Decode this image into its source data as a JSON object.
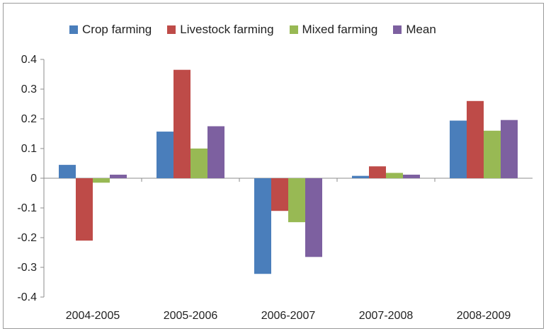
{
  "chart_data": {
    "type": "bar",
    "title": "",
    "xlabel": "",
    "ylabel": "",
    "categories": [
      "2004-2005",
      "2005-2006",
      "2006-2007",
      "2007-2008",
      "2008-2009"
    ],
    "ylim": [
      -0.4,
      0.4
    ],
    "yticks": [
      "0.4",
      "0.3",
      "0.2",
      "0.1",
      "0",
      "-0.1",
      "-0.2",
      "-0.3",
      "-0.4"
    ],
    "grid": false,
    "legend_position": "top",
    "series": [
      {
        "name": "Crop farming",
        "color": "#4a7ebb",
        "values": [
          0.045,
          0.157,
          -0.322,
          0.008,
          0.194
        ]
      },
      {
        "name": "Livestock farming",
        "color": "#be4b48",
        "values": [
          -0.21,
          0.365,
          -0.11,
          0.04,
          0.26
        ]
      },
      {
        "name": "Mixed farming",
        "color": "#98b954",
        "values": [
          -0.015,
          0.1,
          -0.148,
          0.018,
          0.16
        ]
      },
      {
        "name": "Mean",
        "color": "#7d60a0",
        "values": [
          0.012,
          0.175,
          -0.265,
          0.012,
          0.196
        ]
      }
    ]
  }
}
